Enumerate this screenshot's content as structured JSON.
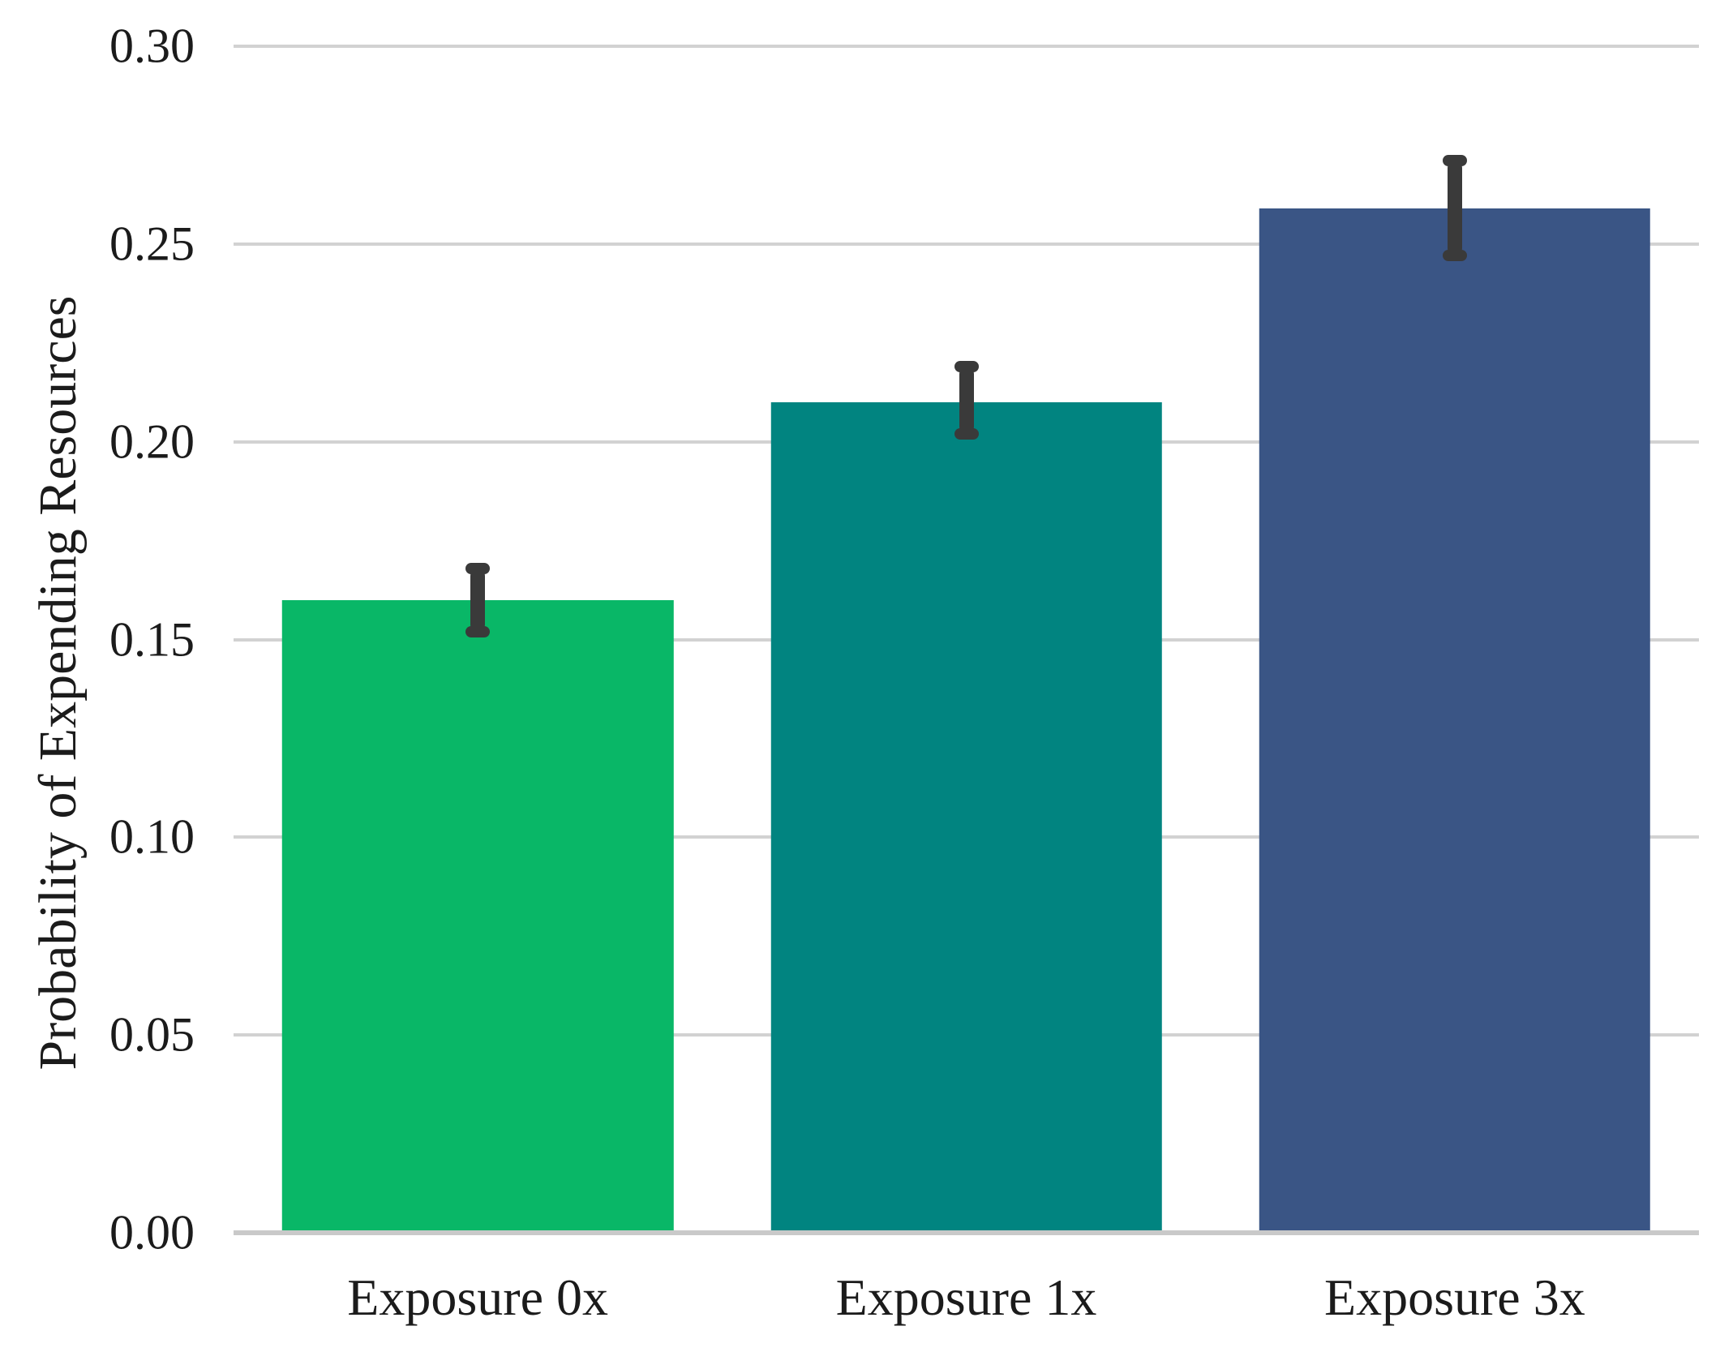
{
  "chart_data": {
    "type": "bar",
    "title": "",
    "xlabel": "",
    "ylabel": "Probability of Expending Resources",
    "categories": [
      "Exposure 0x",
      "Exposure 1x",
      "Exposure 3x"
    ],
    "values": [
      0.16,
      0.21,
      0.259
    ],
    "error_low": [
      0.152,
      0.202,
      0.247
    ],
    "error_high": [
      0.168,
      0.219,
      0.271
    ],
    "bar_colors": [
      "#09b767",
      "#018480",
      "#3a5585"
    ],
    "ylim": [
      0,
      0.3
    ],
    "yticks": [
      0.3,
      0.25,
      0.2,
      0.15,
      0.1,
      0.05,
      0.0
    ],
    "ytick_labels": [
      "0.30",
      "0.25",
      "0.20",
      "0.15",
      "0.10",
      "0.05",
      "0.00"
    ],
    "grid": "horizontal-gridlines-on",
    "legend": "none",
    "bar_width_frac": 0.267,
    "colors": {
      "error_bar": "#3a3a3a",
      "gridline": "#d2d2d2",
      "axis_line": "#c9c9c9",
      "text": "#1b1b1b",
      "background": "#ffffff"
    }
  }
}
